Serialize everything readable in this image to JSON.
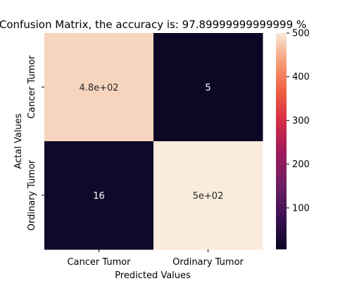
{
  "chart_data": {
    "type": "heatmap",
    "title": "Confusion Matrix, the accuracy is: 97.89999999999999 %",
    "xlabel": "Predicted Values",
    "ylabel": "Actal Values",
    "x_categories": [
      "Cancer Tumor",
      "Ordinary Tumor"
    ],
    "y_categories": [
      "Cancer Tumor",
      "Ordinary Tumor"
    ],
    "values": [
      [
        479,
        5
      ],
      [
        16,
        500
      ]
    ],
    "annotations": [
      [
        "4.8e+02",
        "5"
      ],
      [
        "16",
        "5e+02"
      ]
    ],
    "colorbar": {
      "range": [
        5,
        500
      ],
      "ticks": [
        "100",
        "200",
        "300",
        "400",
        "500"
      ],
      "colormap": "rocket",
      "colors": {
        "low": "#0b0725",
        "high": "#faebdd"
      }
    },
    "colors": {
      "cells": [
        [
          "#f6d4be",
          "#0b0725"
        ],
        [
          "#0e0a29",
          "#faebdd"
        ]
      ],
      "annotation_light": "#ffffff",
      "annotation_dark": "#262626"
    }
  }
}
